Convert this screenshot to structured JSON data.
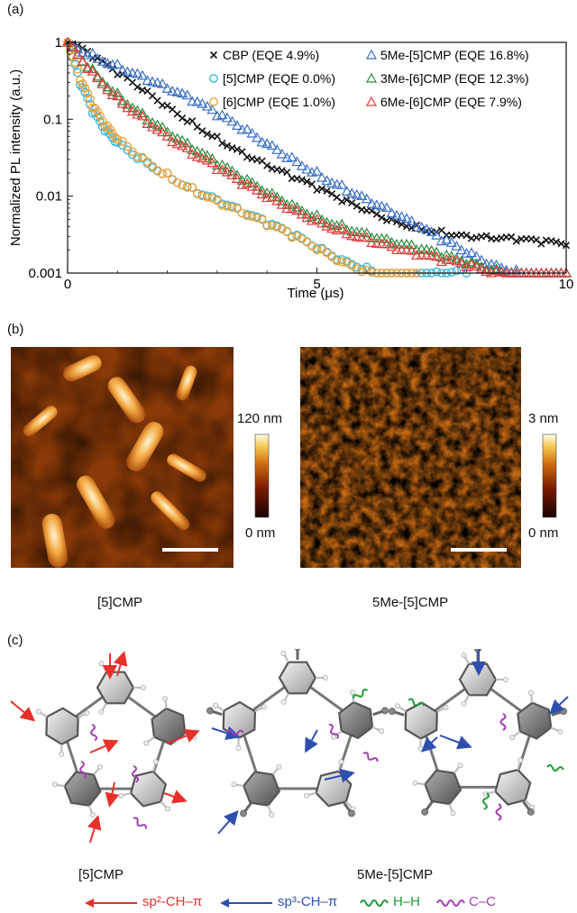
{
  "panels": {
    "a": "(a)",
    "b": "(b)",
    "c": "(c)"
  },
  "chart_data": {
    "type": "scatter",
    "xlabel": "Time (μs)",
    "ylabel": "Normalized PL intensity (a.u.)",
    "xlim": [
      0,
      10
    ],
    "ylim": [
      0.001,
      1
    ],
    "yscale": "log",
    "xticks": [
      0,
      5,
      10
    ],
    "yticks": [
      {
        "value": 1,
        "label": "1"
      },
      {
        "value": 0.1,
        "label": "0.1"
      },
      {
        "value": 0.01,
        "label": "0.01"
      },
      {
        "value": 0.001,
        "label": "0.001"
      }
    ],
    "legend_placement": "top-right",
    "series": [
      {
        "name": "CBP (EQE 4.9%)",
        "marker": "x",
        "color": "#111111",
        "x": [
          0,
          0.5,
          1,
          1.5,
          2,
          2.5,
          3,
          3.5,
          4,
          4.5,
          5,
          5.5,
          6,
          6.5,
          7,
          7.5,
          8,
          8.5,
          9,
          9.5,
          10
        ],
        "y": [
          1,
          0.62,
          0.38,
          0.24,
          0.15,
          0.095,
          0.06,
          0.038,
          0.025,
          0.017,
          0.012,
          0.0085,
          0.0065,
          0.005,
          0.0042,
          0.0036,
          0.0031,
          0.0028,
          0.0026,
          0.0024,
          0.0023
        ]
      },
      {
        "name": "5Me-[5]CMP (EQE 16.8%)",
        "marker": "triangle",
        "color": "#3a6fc4",
        "x": [
          0,
          0.5,
          1,
          1.5,
          2,
          2.5,
          3,
          3.5,
          4,
          4.5,
          5,
          5.5,
          6,
          6.5,
          7,
          7.5,
          8,
          8.5,
          9,
          9.5,
          10
        ],
        "y": [
          1,
          0.72,
          0.52,
          0.37,
          0.25,
          0.17,
          0.11,
          0.073,
          0.048,
          0.032,
          0.021,
          0.014,
          0.0092,
          0.006,
          0.0039,
          0.0026,
          0.0018,
          0.0013,
          0.0011,
          0.001,
          0.001
        ]
      },
      {
        "name": "[5]CMP (EQE 0.0%)",
        "marker": "circle",
        "color": "#33b5e0",
        "x": [
          0,
          0.25,
          0.5,
          0.75,
          1,
          1.5,
          2,
          2.5,
          3,
          3.5,
          4,
          4.5,
          5,
          5.5,
          6,
          6.5,
          7,
          7.5,
          8
        ],
        "y": [
          1,
          0.28,
          0.12,
          0.07,
          0.05,
          0.031,
          0.02,
          0.013,
          0.009,
          0.006,
          0.0042,
          0.003,
          0.0021,
          0.0015,
          0.0012,
          0.001,
          0.001,
          0.001,
          0.001
        ]
      },
      {
        "name": "3Me-[6]CMP (EQE 12.3%)",
        "marker": "triangle",
        "color": "#2a8a3a",
        "x": [
          0,
          0.5,
          1,
          1.5,
          2,
          2.5,
          3,
          3.5,
          4,
          4.5,
          5,
          5.5,
          6,
          6.5,
          7,
          7.5,
          8,
          8.5,
          9,
          9.5,
          10
        ],
        "y": [
          1,
          0.45,
          0.22,
          0.12,
          0.068,
          0.04,
          0.025,
          0.016,
          0.011,
          0.0078,
          0.0057,
          0.0043,
          0.0033,
          0.0025,
          0.002,
          0.0016,
          0.0013,
          0.0011,
          0.001,
          0.001,
          0.001
        ]
      },
      {
        "name": "[6]CMP (EQE 1.0%)",
        "marker": "circle",
        "color": "#f0a030",
        "x": [
          0,
          0.25,
          0.5,
          0.75,
          1,
          1.5,
          2,
          2.5,
          3,
          3.5,
          4,
          4.5,
          5,
          5.5,
          6,
          6.5,
          7
        ],
        "y": [
          1,
          0.32,
          0.14,
          0.08,
          0.055,
          0.032,
          0.02,
          0.013,
          0.0088,
          0.006,
          0.0041,
          0.0029,
          0.002,
          0.0014,
          0.0011,
          0.001,
          0.001
        ]
      },
      {
        "name": "6Me-[6]CMP (EQE 7.9%)",
        "marker": "triangle",
        "color": "#e03a3a",
        "x": [
          0,
          0.5,
          1,
          1.5,
          2,
          2.5,
          3,
          3.5,
          4,
          4.5,
          5,
          5.5,
          6,
          6.5,
          7,
          7.5,
          8,
          8.5,
          9,
          9.5,
          10
        ],
        "y": [
          1,
          0.42,
          0.2,
          0.11,
          0.06,
          0.035,
          0.022,
          0.014,
          0.0095,
          0.0068,
          0.005,
          0.0038,
          0.0029,
          0.0022,
          0.0017,
          0.0014,
          0.0012,
          0.001,
          0.001,
          0.001,
          0.001
        ]
      }
    ]
  },
  "afm": {
    "left": {
      "cbar_max": "120 nm",
      "cbar_min": "0 nm",
      "caption": "[5]CMP"
    },
    "right": {
      "cbar_max": "3 nm",
      "cbar_min": "0 nm",
      "caption": "5Me-[5]CMP"
    }
  },
  "molecules": {
    "left_caption": "[5]CMP",
    "right_caption": "5Me-[5]CMP"
  },
  "interaction_legend": [
    {
      "label": "sp²-CH–π",
      "color": "#e8302a",
      "kind": "arrow"
    },
    {
      "label": "sp³-CH–π",
      "color": "#2f4fb0",
      "kind": "arrow"
    },
    {
      "label": "H–H",
      "color": "#1f9a3a",
      "kind": "wave"
    },
    {
      "label": "C–C",
      "color": "#a040b0",
      "kind": "wave"
    }
  ],
  "colors": {
    "cbp": "#111111",
    "me5": "#3a6fc4",
    "c5": "#33b5e0",
    "me3_6": "#2a8a3a",
    "c6": "#f0a030",
    "me6_6": "#e03a3a"
  }
}
